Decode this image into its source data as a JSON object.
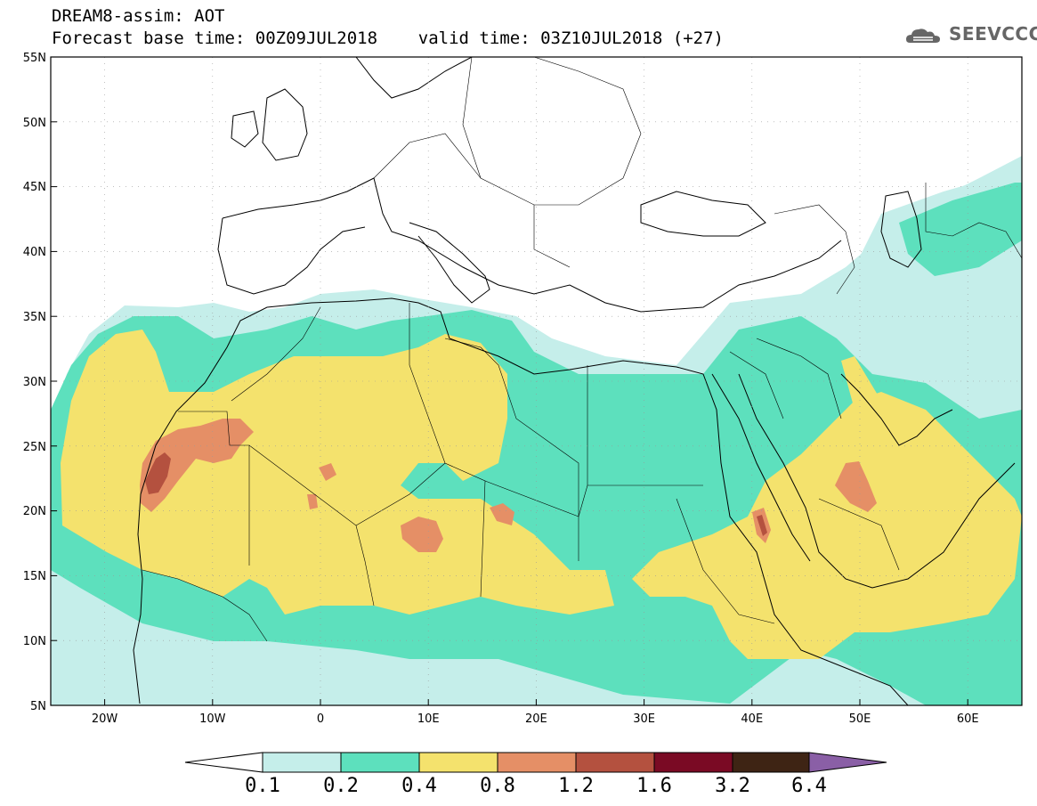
{
  "header": {
    "title_line1": "DREAM8-assim: AOT",
    "title_line2": "Forecast base time: 00Z09JUL2018    valid time: 03Z10JUL2018 (+27)",
    "logo_text": "SEEVCCC"
  },
  "map": {
    "lat_labels": [
      "55N",
      "50N",
      "45N",
      "40N",
      "35N",
      "30N",
      "25N",
      "20N",
      "15N",
      "10N",
      "5N"
    ],
    "lon_labels": [
      "20W",
      "10W",
      "0",
      "10E",
      "20E",
      "30E",
      "40E",
      "50E",
      "60E"
    ]
  },
  "colorbar": {
    "colors": [
      "#c5eeea",
      "#5de0bd",
      "#f4e26d",
      "#e58f66",
      "#b4513f",
      "#7a0a24",
      "#3e2414",
      "#8a5fa6"
    ],
    "labels": [
      "0.1",
      "0.2",
      "0.4",
      "0.8",
      "1.2",
      "1.6",
      "3.2",
      "6.4"
    ],
    "under_color": "#ffffff",
    "over_color": "#8a5fa6"
  }
}
